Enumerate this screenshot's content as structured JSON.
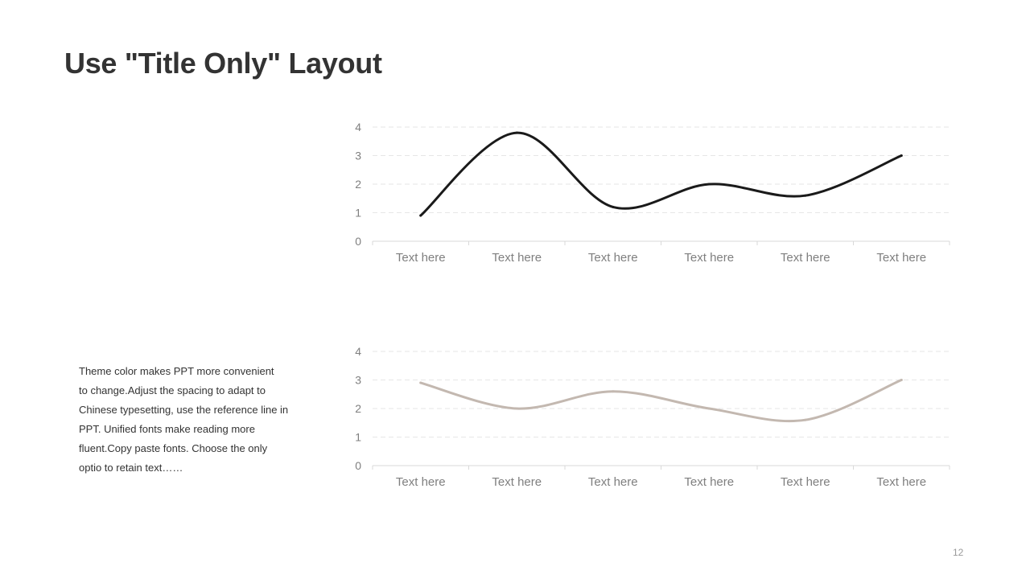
{
  "slide": {
    "title": "Use \"Title Only\" Layout",
    "body_lines": [
      "Theme  color makes PPT more convenient",
      "to change.Adjust  the spacing to adapt to",
      "Chinese  typesetting, use the reference line in",
      "PPT. Unified  fonts make reading more",
      "fluent.Copy paste fonts. Choose the only",
      "optio to retain text……"
    ],
    "page_number": "12"
  },
  "colors": {
    "chart_1_line": "#1a1a1a",
    "chart_2_line": "#c3b8b0",
    "gridline": "#e6e6e6",
    "axis": "#d9d9d9",
    "tick_label": "#7f7f7f"
  },
  "chart_data": [
    {
      "type": "line",
      "smooth": true,
      "categories": [
        "Text here",
        "Text here",
        "Text here",
        "Text here",
        "Text here",
        "Text here"
      ],
      "series": [
        {
          "values": [
            0.9,
            3.8,
            1.2,
            2.0,
            1.6,
            3.0
          ]
        }
      ],
      "ylim": [
        0,
        4
      ],
      "yticks": [
        0,
        1,
        2,
        3,
        4
      ],
      "grid": true,
      "legend": "none"
    },
    {
      "type": "line",
      "smooth": true,
      "categories": [
        "Text here",
        "Text here",
        "Text here",
        "Text here",
        "Text here",
        "Text here"
      ],
      "series": [
        {
          "values": [
            2.9,
            2.0,
            2.6,
            2.0,
            1.6,
            3.0
          ]
        }
      ],
      "ylim": [
        0,
        4
      ],
      "yticks": [
        0,
        1,
        2,
        3,
        4
      ],
      "grid": true,
      "legend": "none"
    }
  ]
}
